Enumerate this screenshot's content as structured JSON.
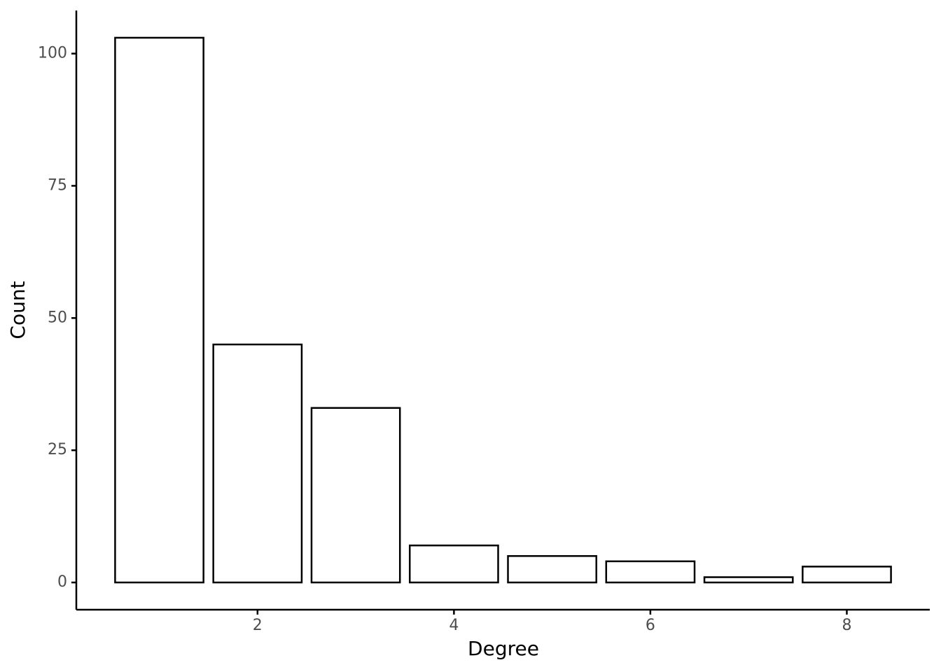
{
  "chart_data": {
    "type": "bar",
    "x_label": "Degree",
    "y_label": "Count",
    "x": [
      1,
      2,
      3,
      4,
      5,
      6,
      7,
      8
    ],
    "values": [
      103,
      45,
      33,
      7,
      5,
      4,
      1,
      3
    ],
    "color": "#ffffff",
    "edge_color": "#000000",
    "xlim": [
      0.155,
      8.845
    ],
    "xticks": [
      2,
      4,
      6,
      8
    ],
    "ylim": [
      -5.15,
      108.15
    ],
    "yticks": [
      0,
      25,
      50,
      75,
      100
    ],
    "grid": false
  }
}
